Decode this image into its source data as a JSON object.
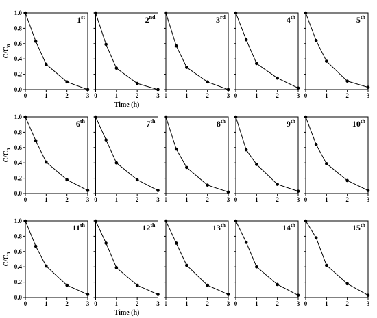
{
  "chart_data": [
    {
      "type": "line",
      "panel_number": "1",
      "panel_suffix": "st",
      "ylabel": "C/C",
      "ylabel_sub": "0",
      "x": [
        0,
        0.5,
        1,
        2,
        3
      ],
      "values": [
        1.0,
        0.63,
        0.33,
        0.1,
        0.0
      ],
      "color": "#000000",
      "xlim": [
        0,
        3
      ],
      "xticks": [
        0,
        1,
        2,
        3
      ],
      "ylim": [
        0,
        1.0
      ],
      "yticks": [
        {
          "value": 0,
          "label": "0.0"
        },
        {
          "value": 0.2,
          "label": "0.2"
        },
        {
          "value": 0.4,
          "label": "0.4"
        },
        {
          "value": 0.6,
          "label": "0.6"
        },
        {
          "value": 0.8,
          "label": "0.8"
        },
        {
          "value": 1.0,
          "label": "1.0"
        }
      ]
    },
    {
      "type": "line",
      "panel_number": "2",
      "panel_suffix": "nd",
      "xlabel": "Time (h)",
      "x": [
        0,
        0.5,
        1,
        2,
        3
      ],
      "values": [
        1.0,
        0.59,
        0.28,
        0.08,
        0.0
      ],
      "color": "#000000",
      "xlim": [
        0,
        3
      ],
      "xticks": [
        0,
        1,
        2,
        3
      ],
      "ylim": [
        0,
        1.0
      ],
      "yticks": [
        {
          "value": 0,
          "label": "0.0"
        },
        {
          "value": 0.2,
          "label": "0.2"
        },
        {
          "value": 0.4,
          "label": "0.4"
        },
        {
          "value": 0.6,
          "label": "0.6"
        },
        {
          "value": 0.8,
          "label": "0.8"
        },
        {
          "value": 1.0,
          "label": "1.0"
        }
      ]
    },
    {
      "type": "line",
      "panel_number": "3",
      "panel_suffix": "rd",
      "x": [
        0,
        0.5,
        1,
        2,
        3
      ],
      "values": [
        1.0,
        0.57,
        0.29,
        0.1,
        0.0
      ],
      "color": "#000000",
      "xlim": [
        0,
        3
      ],
      "xticks": [
        0,
        1,
        2,
        3
      ],
      "ylim": [
        0,
        1.0
      ],
      "yticks": [
        {
          "value": 0,
          "label": "0.0"
        },
        {
          "value": 0.2,
          "label": "0.2"
        },
        {
          "value": 0.4,
          "label": "0.4"
        },
        {
          "value": 0.6,
          "label": "0.6"
        },
        {
          "value": 0.8,
          "label": "0.8"
        },
        {
          "value": 1.0,
          "label": "1.0"
        }
      ]
    },
    {
      "type": "line",
      "panel_number": "4",
      "panel_suffix": "th",
      "x": [
        0,
        0.5,
        1,
        2,
        3
      ],
      "values": [
        1.0,
        0.65,
        0.34,
        0.15,
        0.02
      ],
      "color": "#000000",
      "xlim": [
        0,
        3
      ],
      "xticks": [
        0,
        1,
        2,
        3
      ],
      "ylim": [
        0,
        1.0
      ],
      "yticks": [
        {
          "value": 0,
          "label": "0.0"
        },
        {
          "value": 0.2,
          "label": "0.2"
        },
        {
          "value": 0.4,
          "label": "0.4"
        },
        {
          "value": 0.6,
          "label": "0.6"
        },
        {
          "value": 0.8,
          "label": "0.8"
        },
        {
          "value": 1.0,
          "label": "1.0"
        }
      ]
    },
    {
      "type": "line",
      "panel_number": "5",
      "panel_suffix": "th",
      "x": [
        0,
        0.5,
        1,
        2,
        3
      ],
      "values": [
        1.0,
        0.64,
        0.37,
        0.11,
        0.03
      ],
      "color": "#000000",
      "xlim": [
        0,
        3
      ],
      "xticks": [
        0,
        1,
        2,
        3
      ],
      "ylim": [
        0,
        1.0
      ],
      "yticks": [
        {
          "value": 0,
          "label": "0.0"
        },
        {
          "value": 0.2,
          "label": "0.2"
        },
        {
          "value": 0.4,
          "label": "0.4"
        },
        {
          "value": 0.6,
          "label": "0.6"
        },
        {
          "value": 0.8,
          "label": "0.8"
        },
        {
          "value": 1.0,
          "label": "1.0"
        }
      ]
    },
    {
      "type": "line",
      "panel_number": "6",
      "panel_suffix": "th",
      "ylabel": "C/C",
      "ylabel_sub": "0",
      "x": [
        0,
        0.5,
        1,
        2,
        3
      ],
      "values": [
        1.0,
        0.69,
        0.41,
        0.18,
        0.04
      ],
      "color": "#000000",
      "xlim": [
        0,
        3
      ],
      "xticks": [
        0,
        1,
        2,
        3
      ],
      "ylim": [
        0,
        1.0
      ],
      "yticks": [
        {
          "value": 0,
          "label": "0.0"
        },
        {
          "value": 0.2,
          "label": "0.2"
        },
        {
          "value": 0.4,
          "label": "0.4"
        },
        {
          "value": 0.6,
          "label": "0.6"
        },
        {
          "value": 0.8,
          "label": "0.8"
        },
        {
          "value": 1.0,
          "label": "1.0"
        }
      ]
    },
    {
      "type": "line",
      "panel_number": "7",
      "panel_suffix": "th",
      "x": [
        0,
        0.5,
        1,
        2,
        3
      ],
      "values": [
        1.0,
        0.7,
        0.4,
        0.18,
        0.04
      ],
      "color": "#000000",
      "xlim": [
        0,
        3
      ],
      "xticks": [
        0,
        1,
        2,
        3
      ],
      "ylim": [
        0,
        1.0
      ],
      "yticks": [
        {
          "value": 0,
          "label": "0.0"
        },
        {
          "value": 0.2,
          "label": "0.2"
        },
        {
          "value": 0.4,
          "label": "0.4"
        },
        {
          "value": 0.6,
          "label": "0.6"
        },
        {
          "value": 0.8,
          "label": "0.8"
        },
        {
          "value": 1.0,
          "label": "1.0"
        }
      ]
    },
    {
      "type": "line",
      "panel_number": "8",
      "panel_suffix": "th",
      "x": [
        0,
        0.5,
        1,
        2,
        3
      ],
      "values": [
        1.0,
        0.58,
        0.34,
        0.11,
        0.02
      ],
      "color": "#000000",
      "xlim": [
        0,
        3
      ],
      "xticks": [
        0,
        1,
        2,
        3
      ],
      "ylim": [
        0,
        1.0
      ],
      "yticks": [
        {
          "value": 0,
          "label": "0.0"
        },
        {
          "value": 0.2,
          "label": "0.2"
        },
        {
          "value": 0.4,
          "label": "0.4"
        },
        {
          "value": 0.6,
          "label": "0.6"
        },
        {
          "value": 0.8,
          "label": "0.8"
        },
        {
          "value": 1.0,
          "label": "1.0"
        }
      ]
    },
    {
      "type": "line",
      "panel_number": "9",
      "panel_suffix": "th",
      "x": [
        0,
        0.5,
        1,
        2,
        3
      ],
      "values": [
        1.0,
        0.57,
        0.38,
        0.12,
        0.03
      ],
      "color": "#000000",
      "xlim": [
        0,
        3
      ],
      "xticks": [
        0,
        1,
        2,
        3
      ],
      "ylim": [
        0,
        1.0
      ],
      "yticks": [
        {
          "value": 0,
          "label": "0.0"
        },
        {
          "value": 0.2,
          "label": "0.2"
        },
        {
          "value": 0.4,
          "label": "0.4"
        },
        {
          "value": 0.6,
          "label": "0.6"
        },
        {
          "value": 0.8,
          "label": "0.8"
        },
        {
          "value": 1.0,
          "label": "1.0"
        }
      ]
    },
    {
      "type": "line",
      "panel_number": "10",
      "panel_suffix": "th",
      "x": [
        0,
        0.5,
        1,
        2,
        3
      ],
      "values": [
        1.0,
        0.64,
        0.39,
        0.17,
        0.04
      ],
      "color": "#000000",
      "xlim": [
        0,
        3
      ],
      "xticks": [
        0,
        1,
        2,
        3
      ],
      "ylim": [
        0,
        1.0
      ],
      "yticks": [
        {
          "value": 0,
          "label": "0.0"
        },
        {
          "value": 0.2,
          "label": "0.2"
        },
        {
          "value": 0.4,
          "label": "0.4"
        },
        {
          "value": 0.6,
          "label": "0.6"
        },
        {
          "value": 0.8,
          "label": "0.8"
        },
        {
          "value": 1.0,
          "label": "1.0"
        }
      ]
    },
    {
      "type": "line",
      "panel_number": "11",
      "panel_suffix": "th",
      "ylabel": "C/C",
      "ylabel_sub": "0",
      "x": [
        0,
        0.5,
        1,
        2,
        3
      ],
      "values": [
        1.0,
        0.67,
        0.41,
        0.16,
        0.04
      ],
      "color": "#000000",
      "xlim": [
        0,
        3
      ],
      "xticks": [
        0,
        1,
        2,
        3
      ],
      "ylim": [
        0,
        1.0
      ],
      "yticks": [
        {
          "value": 0,
          "label": "0.0"
        },
        {
          "value": 0.2,
          "label": "0.2"
        },
        {
          "value": 0.4,
          "label": "0.4"
        },
        {
          "value": 0.6,
          "label": "0.6"
        },
        {
          "value": 0.8,
          "label": "0.8"
        },
        {
          "value": 1.0,
          "label": "1.0"
        }
      ]
    },
    {
      "type": "line",
      "panel_number": "12",
      "panel_suffix": "th",
      "xlabel": "Time (h)",
      "x": [
        0,
        0.5,
        1,
        2,
        3
      ],
      "values": [
        1.0,
        0.71,
        0.39,
        0.16,
        0.04
      ],
      "color": "#000000",
      "xlim": [
        0,
        3
      ],
      "xticks": [
        0,
        1,
        2,
        3
      ],
      "ylim": [
        0,
        1.0
      ],
      "yticks": [
        {
          "value": 0,
          "label": "0.0"
        },
        {
          "value": 0.2,
          "label": "0.2"
        },
        {
          "value": 0.4,
          "label": "0.4"
        },
        {
          "value": 0.6,
          "label": "0.6"
        },
        {
          "value": 0.8,
          "label": "0.8"
        },
        {
          "value": 1.0,
          "label": "1.0"
        }
      ]
    },
    {
      "type": "line",
      "panel_number": "13",
      "panel_suffix": "th",
      "x": [
        0,
        0.5,
        1,
        2,
        3
      ],
      "values": [
        1.0,
        0.71,
        0.42,
        0.16,
        0.04
      ],
      "color": "#000000",
      "xlim": [
        0,
        3
      ],
      "xticks": [
        0,
        1,
        2,
        3
      ],
      "ylim": [
        0,
        1.0
      ],
      "yticks": [
        {
          "value": 0,
          "label": "0.0"
        },
        {
          "value": 0.2,
          "label": "0.2"
        },
        {
          "value": 0.4,
          "label": "0.4"
        },
        {
          "value": 0.6,
          "label": "0.6"
        },
        {
          "value": 0.8,
          "label": "0.8"
        },
        {
          "value": 1.0,
          "label": "1.0"
        }
      ]
    },
    {
      "type": "line",
      "panel_number": "14",
      "panel_suffix": "th",
      "x": [
        0,
        0.5,
        1,
        2,
        3
      ],
      "values": [
        1.0,
        0.72,
        0.4,
        0.17,
        0.03
      ],
      "color": "#000000",
      "xlim": [
        0,
        3
      ],
      "xticks": [
        0,
        1,
        2,
        3
      ],
      "ylim": [
        0,
        1.0
      ],
      "yticks": [
        {
          "value": 0,
          "label": "0.0"
        },
        {
          "value": 0.2,
          "label": "0.2"
        },
        {
          "value": 0.4,
          "label": "0.4"
        },
        {
          "value": 0.6,
          "label": "0.6"
        },
        {
          "value": 0.8,
          "label": "0.8"
        },
        {
          "value": 1.0,
          "label": "1.0"
        }
      ]
    },
    {
      "type": "line",
      "panel_number": "15",
      "panel_suffix": "th",
      "x": [
        0,
        0.5,
        1,
        2,
        3
      ],
      "values": [
        1.0,
        0.78,
        0.42,
        0.18,
        0.03
      ],
      "color": "#000000",
      "xlim": [
        0,
        3
      ],
      "xticks": [
        0,
        1,
        2,
        3
      ],
      "ylim": [
        0,
        1.0
      ],
      "yticks": [
        {
          "value": 0,
          "label": "0.0"
        },
        {
          "value": 0.2,
          "label": "0.2"
        },
        {
          "value": 0.4,
          "label": "0.4"
        },
        {
          "value": 0.6,
          "label": "0.6"
        },
        {
          "value": 0.8,
          "label": "0.8"
        },
        {
          "value": 1.0,
          "label": "1.0"
        }
      ]
    }
  ]
}
